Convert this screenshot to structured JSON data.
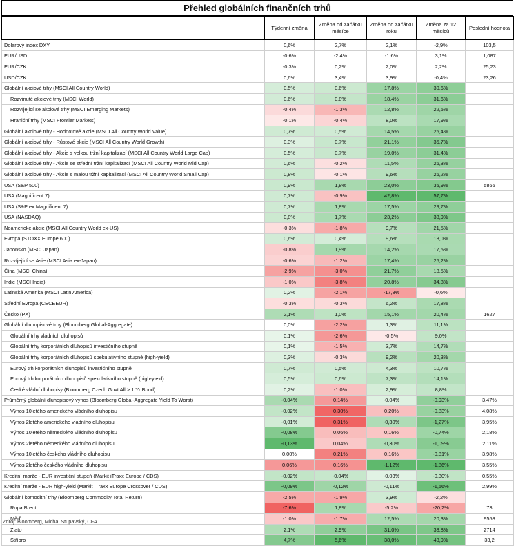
{
  "title": "Přehled globálních finančních trhů",
  "headers": [
    "",
    "Týdenní změna",
    "Změna od začátku měsíce",
    "Změna od začátku roku",
    "Změna za 12 měsíců",
    "Poslední hodnota"
  ],
  "source": "Zdroj: Bloomberg, Michal Stupavský, CFA",
  "colors": {
    "pos_max": "#5cb86a",
    "neg_max": "#f0605f",
    "mid": "#ffffff"
  },
  "rows": [
    {
      "name": "Dolarový index DXY",
      "vals": [
        "0,6%",
        "2,7%",
        "2,1%",
        "-2,9%",
        "103,5"
      ],
      "sep": true,
      "plain": true
    },
    {
      "name": "EUR/USD",
      "vals": [
        "-0,6%",
        "-2,4%",
        "-1,6%",
        "3,1%",
        "1,087"
      ],
      "plain": true
    },
    {
      "name": "EUR/CZK",
      "vals": [
        "-0,3%",
        "0,2%",
        "2,0%",
        "2,2%",
        "25,23"
      ],
      "plain": true
    },
    {
      "name": "USD/CZK",
      "vals": [
        "0,6%",
        "3,4%",
        "3,9%",
        "-0,4%",
        "23,26"
      ],
      "plain": true
    },
    {
      "name": "Globální akciové trhy (MSCI All Country World)",
      "vals": [
        "0,5%",
        "0,6%",
        "17,8%",
        "30,6%",
        ""
      ],
      "sep": true
    },
    {
      "name": "Rozvinuté akciové trhy (MSCI World)",
      "vals": [
        "0,6%",
        "0,8%",
        "18,4%",
        "31,6%",
        ""
      ],
      "ind": true
    },
    {
      "name": "Rozvíjející se akciové trhy (MSCI Emerging Markets)",
      "vals": [
        "-0,4%",
        "-1,3%",
        "12,8%",
        "22,5%",
        ""
      ],
      "ind": true
    },
    {
      "name": "Hraniční trhy (MSCI Frontier Markets)",
      "vals": [
        "-0,1%",
        "-0,4%",
        "8,0%",
        "17,9%",
        ""
      ],
      "ind": true
    },
    {
      "name": "Globální akciové trhy - Hodnotové akcie (MSCI All Country World Value)",
      "vals": [
        "0,7%",
        "0,5%",
        "14,5%",
        "25,4%",
        ""
      ]
    },
    {
      "name": "Globální akciové trhy - Růstové akcie (MSCI All Country World Growth)",
      "vals": [
        "0,3%",
        "0,7%",
        "21,1%",
        "35,7%",
        ""
      ]
    },
    {
      "name": "Globální akciové trhy - Akcie s velkou tržní kapitalizací (MSCI All Country World Large Cap)",
      "vals": [
        "0,5%",
        "0,7%",
        "19,0%",
        "31,4%",
        ""
      ]
    },
    {
      "name": "Globální akciové trhy - Akcie se střední tržní kapitalizací (MSCI All Country World Mid Cap)",
      "vals": [
        "0,6%",
        "-0,2%",
        "11,5%",
        "26,3%",
        ""
      ]
    },
    {
      "name": "Globální akciové trhy - Akcie s malou tržní kapitalizací (MSCI All Country World Small Cap)",
      "vals": [
        "0,8%",
        "-0,1%",
        "9,6%",
        "26,2%",
        ""
      ]
    },
    {
      "name": "USA (S&P 500)",
      "vals": [
        "0,9%",
        "1,8%",
        "23,0%",
        "35,9%",
        "5865"
      ],
      "sep": true
    },
    {
      "name": "USA (Magnificent 7)",
      "vals": [
        "0,7%",
        "-0,9%",
        "42,8%",
        "57,7%",
        ""
      ]
    },
    {
      "name": "USA (S&P ex Magnificent 7)",
      "vals": [
        "0,7%",
        "1,8%",
        "17,5%",
        "29,7%",
        ""
      ]
    },
    {
      "name": "USA (NASDAQ)",
      "vals": [
        "0,8%",
        "1,7%",
        "23,2%",
        "38,9%",
        ""
      ]
    },
    {
      "name": "Neamerické akcie (MSCI All Country World ex-US)",
      "vals": [
        "-0,3%",
        "-1,8%",
        "9,7%",
        "21,5%",
        ""
      ]
    },
    {
      "name": "Evropa (STOXX Europe 600)",
      "vals": [
        "0,6%",
        "0,4%",
        "9,6%",
        "18,0%",
        ""
      ]
    },
    {
      "name": "Japonsko (MSCI Japan)",
      "vals": [
        "-0,8%",
        "1,9%",
        "14,2%",
        "17,5%",
        ""
      ]
    },
    {
      "name": "Rozvíjející se Asie (MSCI Asia ex-Japan)",
      "vals": [
        "-0,6%",
        "-1,2%",
        "17,4%",
        "25,2%",
        ""
      ]
    },
    {
      "name": "Čína (MSCI China)",
      "vals": [
        "-2,9%",
        "-3,0%",
        "21,7%",
        "18,5%",
        ""
      ]
    },
    {
      "name": "Indie (MSCI India)",
      "vals": [
        "-1,0%",
        "-3,8%",
        "20,8%",
        "34,8%",
        ""
      ]
    },
    {
      "name": "Latinská Amerika (MSCI Latin America)",
      "vals": [
        "0,2%",
        "-2,1%",
        "-17,8%",
        "-0,6%",
        ""
      ]
    },
    {
      "name": "Střední Evropa (CECEEUR)",
      "vals": [
        "-0,3%",
        "-0,3%",
        "6,2%",
        "17,8%",
        ""
      ]
    },
    {
      "name": "Česko (PX)",
      "vals": [
        "2,1%",
        "1,0%",
        "15,1%",
        "20,4%",
        "1627"
      ]
    },
    {
      "name": "Globální dluhopisové trhy (Bloomberg Global-Aggregate)",
      "vals": [
        "0,0%",
        "-2,2%",
        "1,3%",
        "11,1%",
        ""
      ],
      "sep": true
    },
    {
      "name": "Globální trhy vládních dluhopisů",
      "vals": [
        "0,1%",
        "-2,6%",
        "-0,5%",
        "9,0%",
        ""
      ],
      "ind": true
    },
    {
      "name": "Globální trhy korporátních dluhopisů investičního stupně",
      "vals": [
        "0,1%",
        "-1,5%",
        "3,7%",
        "14,7%",
        ""
      ],
      "ind": true
    },
    {
      "name": "Globální trhy korporátních dluhopisů spekulativního stupně (high-yield)",
      "vals": [
        "0,3%",
        "-0,3%",
        "9,2%",
        "20,3%",
        ""
      ],
      "ind": true
    },
    {
      "name": "Eurový trh korporátních dluhopisů investičního stupně",
      "vals": [
        "0,7%",
        "0,5%",
        "4,3%",
        "10,7%",
        ""
      ],
      "ind": true
    },
    {
      "name": "Eurový trh korporátních dluhopisů spekulativního stupně (high-yield)",
      "vals": [
        "0,5%",
        "0,6%",
        "7,3%",
        "14,1%",
        ""
      ],
      "ind": true
    },
    {
      "name": "České vládní dluhopisy (Bloomberg Czech Govt All > 1 Yr Bond)",
      "vals": [
        "0,2%",
        "-1,0%",
        "2,9%",
        "8,8%",
        ""
      ],
      "ind": true
    },
    {
      "name": "Průměrný globální dluhopisový výnos (Bloomberg Global-Aggregate Yield To Worst)",
      "vals": [
        "-0,04%",
        "0,14%",
        "-0,04%",
        "-0,93%",
        "3,47%"
      ],
      "sep": true,
      "yield": true
    },
    {
      "name": "Výnos 10letého amerického vládního dluhopisu",
      "vals": [
        "-0,02%",
        "0,30%",
        "0,20%",
        "-0,83%",
        "4,08%"
      ],
      "ind": true,
      "yield": true
    },
    {
      "name": "Výnos 2letého amerického vládního dluhopisu",
      "vals": [
        "-0,01%",
        "0,31%",
        "-0,30%",
        "-1,27%",
        "3,95%"
      ],
      "ind": true,
      "yield": true
    },
    {
      "name": "Výnos 10letého německého vládního dluhopisu",
      "vals": [
        "-0,08%",
        "0,06%",
        "0,16%",
        "-0,74%",
        "2,18%"
      ],
      "ind": true,
      "yield": true
    },
    {
      "name": "Výnos 2letého německého vládního dluhopisu",
      "vals": [
        "-0,13%",
        "0,04%",
        "-0,30%",
        "-1,09%",
        "2,11%"
      ],
      "ind": true,
      "yield": true
    },
    {
      "name": "Výnos 10letého českého vládního dluhopisu",
      "vals": [
        "0,00%",
        "0,21%",
        "0,16%",
        "-0,81%",
        "3,98%"
      ],
      "ind": true,
      "yield": true
    },
    {
      "name": "Výnos 2letého českého vládního dluhopisu",
      "vals": [
        "0,06%",
        "0,16%",
        "-1,12%",
        "-1,86%",
        "3,55%"
      ],
      "ind": true,
      "yield": true
    },
    {
      "name": "Kreditní marže - EUR investiční stupeň (Markit iTraxx Europe / CDS)",
      "vals": [
        "-0,02%",
        "-0,04%",
        "-0,03%",
        "-0,30%",
        "0,55%"
      ],
      "yield": true
    },
    {
      "name": "Kreditní marže - EUR high-yield (Markit iTraxx Europe Crossover / CDS)",
      "vals": [
        "-0,09%",
        "-0,12%",
        "-0,11%",
        "-1,56%",
        "2,99%"
      ],
      "yield": true
    },
    {
      "name": "Globální komoditní trhy (Bloomberg Commodity Total Return)",
      "vals": [
        "-2,5%",
        "-1,9%",
        "3,9%",
        "-2,2%",
        ""
      ],
      "sep": true
    },
    {
      "name": "Ropa Brent",
      "vals": [
        "-7,6%",
        "1,8%",
        "-5,2%",
        "-20,2%",
        "73"
      ],
      "ind": true
    },
    {
      "name": "Měď",
      "vals": [
        "-1,0%",
        "-1,7%",
        "12,5%",
        "20,3%",
        "9553"
      ],
      "ind": true
    },
    {
      "name": "Zlato",
      "vals": [
        "2,1%",
        "2,9%",
        "31,0%",
        "38,8%",
        "2714"
      ],
      "ind": true
    },
    {
      "name": "Stříbro",
      "vals": [
        "4,7%",
        "5,6%",
        "38,0%",
        "43,9%",
        "33,2"
      ],
      "ind": true
    }
  ]
}
